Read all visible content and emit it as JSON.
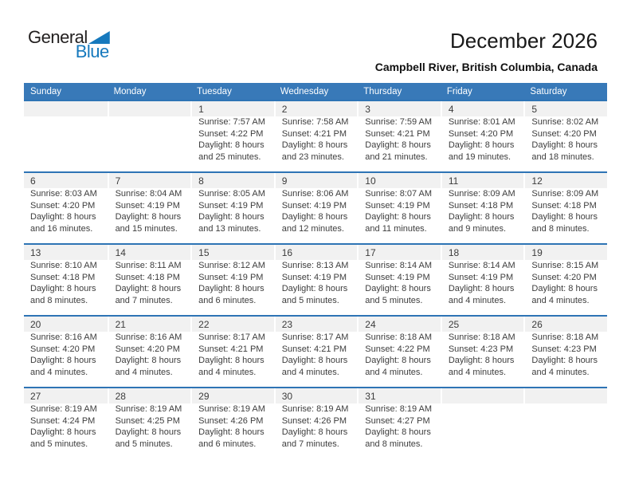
{
  "logo": {
    "general": "General",
    "blue": "Blue"
  },
  "header": {
    "title": "December 2026",
    "subtitle": "Campbell River, British Columbia, Canada"
  },
  "colors": {
    "header_blue": "#3879b8",
    "week_border_blue": "#2e74b5",
    "band_gray": "#f1f1f1",
    "logo_blue": "#1679bd"
  },
  "calendar": {
    "weekdays": [
      "Sunday",
      "Monday",
      "Tuesday",
      "Wednesday",
      "Thursday",
      "Friday",
      "Saturday"
    ],
    "weeks": [
      [
        null,
        null,
        {
          "day": "1",
          "sunrise": "Sunrise: 7:57 AM",
          "sunset": "Sunset: 4:22 PM",
          "daylight": "Daylight: 8 hours and 25 minutes."
        },
        {
          "day": "2",
          "sunrise": "Sunrise: 7:58 AM",
          "sunset": "Sunset: 4:21 PM",
          "daylight": "Daylight: 8 hours and 23 minutes."
        },
        {
          "day": "3",
          "sunrise": "Sunrise: 7:59 AM",
          "sunset": "Sunset: 4:21 PM",
          "daylight": "Daylight: 8 hours and 21 minutes."
        },
        {
          "day": "4",
          "sunrise": "Sunrise: 8:01 AM",
          "sunset": "Sunset: 4:20 PM",
          "daylight": "Daylight: 8 hours and 19 minutes."
        },
        {
          "day": "5",
          "sunrise": "Sunrise: 8:02 AM",
          "sunset": "Sunset: 4:20 PM",
          "daylight": "Daylight: 8 hours and 18 minutes."
        }
      ],
      [
        {
          "day": "6",
          "sunrise": "Sunrise: 8:03 AM",
          "sunset": "Sunset: 4:20 PM",
          "daylight": "Daylight: 8 hours and 16 minutes."
        },
        {
          "day": "7",
          "sunrise": "Sunrise: 8:04 AM",
          "sunset": "Sunset: 4:19 PM",
          "daylight": "Daylight: 8 hours and 15 minutes."
        },
        {
          "day": "8",
          "sunrise": "Sunrise: 8:05 AM",
          "sunset": "Sunset: 4:19 PM",
          "daylight": "Daylight: 8 hours and 13 minutes."
        },
        {
          "day": "9",
          "sunrise": "Sunrise: 8:06 AM",
          "sunset": "Sunset: 4:19 PM",
          "daylight": "Daylight: 8 hours and 12 minutes."
        },
        {
          "day": "10",
          "sunrise": "Sunrise: 8:07 AM",
          "sunset": "Sunset: 4:19 PM",
          "daylight": "Daylight: 8 hours and 11 minutes."
        },
        {
          "day": "11",
          "sunrise": "Sunrise: 8:09 AM",
          "sunset": "Sunset: 4:18 PM",
          "daylight": "Daylight: 8 hours and 9 minutes."
        },
        {
          "day": "12",
          "sunrise": "Sunrise: 8:09 AM",
          "sunset": "Sunset: 4:18 PM",
          "daylight": "Daylight: 8 hours and 8 minutes."
        }
      ],
      [
        {
          "day": "13",
          "sunrise": "Sunrise: 8:10 AM",
          "sunset": "Sunset: 4:18 PM",
          "daylight": "Daylight: 8 hours and 8 minutes."
        },
        {
          "day": "14",
          "sunrise": "Sunrise: 8:11 AM",
          "sunset": "Sunset: 4:18 PM",
          "daylight": "Daylight: 8 hours and 7 minutes."
        },
        {
          "day": "15",
          "sunrise": "Sunrise: 8:12 AM",
          "sunset": "Sunset: 4:19 PM",
          "daylight": "Daylight: 8 hours and 6 minutes."
        },
        {
          "day": "16",
          "sunrise": "Sunrise: 8:13 AM",
          "sunset": "Sunset: 4:19 PM",
          "daylight": "Daylight: 8 hours and 5 minutes."
        },
        {
          "day": "17",
          "sunrise": "Sunrise: 8:14 AM",
          "sunset": "Sunset: 4:19 PM",
          "daylight": "Daylight: 8 hours and 5 minutes."
        },
        {
          "day": "18",
          "sunrise": "Sunrise: 8:14 AM",
          "sunset": "Sunset: 4:19 PM",
          "daylight": "Daylight: 8 hours and 4 minutes."
        },
        {
          "day": "19",
          "sunrise": "Sunrise: 8:15 AM",
          "sunset": "Sunset: 4:20 PM",
          "daylight": "Daylight: 8 hours and 4 minutes."
        }
      ],
      [
        {
          "day": "20",
          "sunrise": "Sunrise: 8:16 AM",
          "sunset": "Sunset: 4:20 PM",
          "daylight": "Daylight: 8 hours and 4 minutes."
        },
        {
          "day": "21",
          "sunrise": "Sunrise: 8:16 AM",
          "sunset": "Sunset: 4:20 PM",
          "daylight": "Daylight: 8 hours and 4 minutes."
        },
        {
          "day": "22",
          "sunrise": "Sunrise: 8:17 AM",
          "sunset": "Sunset: 4:21 PM",
          "daylight": "Daylight: 8 hours and 4 minutes."
        },
        {
          "day": "23",
          "sunrise": "Sunrise: 8:17 AM",
          "sunset": "Sunset: 4:21 PM",
          "daylight": "Daylight: 8 hours and 4 minutes."
        },
        {
          "day": "24",
          "sunrise": "Sunrise: 8:18 AM",
          "sunset": "Sunset: 4:22 PM",
          "daylight": "Daylight: 8 hours and 4 minutes."
        },
        {
          "day": "25",
          "sunrise": "Sunrise: 8:18 AM",
          "sunset": "Sunset: 4:23 PM",
          "daylight": "Daylight: 8 hours and 4 minutes."
        },
        {
          "day": "26",
          "sunrise": "Sunrise: 8:18 AM",
          "sunset": "Sunset: 4:23 PM",
          "daylight": "Daylight: 8 hours and 4 minutes."
        }
      ],
      [
        {
          "day": "27",
          "sunrise": "Sunrise: 8:19 AM",
          "sunset": "Sunset: 4:24 PM",
          "daylight": "Daylight: 8 hours and 5 minutes."
        },
        {
          "day": "28",
          "sunrise": "Sunrise: 8:19 AM",
          "sunset": "Sunset: 4:25 PM",
          "daylight": "Daylight: 8 hours and 5 minutes."
        },
        {
          "day": "29",
          "sunrise": "Sunrise: 8:19 AM",
          "sunset": "Sunset: 4:26 PM",
          "daylight": "Daylight: 8 hours and 6 minutes."
        },
        {
          "day": "30",
          "sunrise": "Sunrise: 8:19 AM",
          "sunset": "Sunset: 4:26 PM",
          "daylight": "Daylight: 8 hours and 7 minutes."
        },
        {
          "day": "31",
          "sunrise": "Sunrise: 8:19 AM",
          "sunset": "Sunset: 4:27 PM",
          "daylight": "Daylight: 8 hours and 8 minutes."
        },
        null,
        null
      ]
    ]
  }
}
